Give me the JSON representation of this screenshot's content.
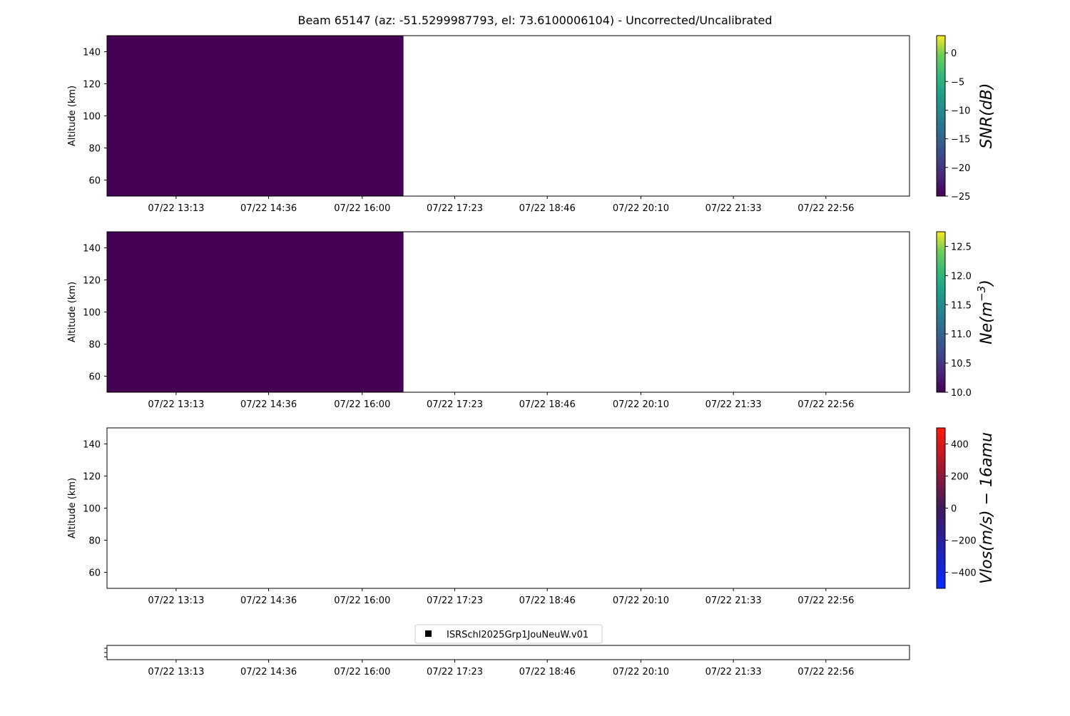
{
  "chart_data": {
    "title": "Beam 65147 (az: -51.5299987793, el: 73.6100006104) - Uncorrected/Uncalibrated",
    "type": "heatmap",
    "x_tick_labels": [
      "07/22 13:13",
      "07/22 14:36",
      "07/22 16:00",
      "07/22 17:23",
      "07/22 18:46",
      "07/22 20:10",
      "07/22 21:33",
      "07/22 22:56"
    ],
    "x_tick_minutes": [
      793,
      876,
      960,
      1043,
      1126,
      1210,
      1293,
      1376
    ],
    "xlim_minutes": [
      731,
      1451
    ],
    "panels": [
      {
        "ylabel": "Altitude (km)",
        "ylim": [
          50,
          150
        ],
        "yticks": [
          60,
          80,
          100,
          120,
          140
        ],
        "colorbar_label": "SNR(dB)",
        "colorbar_ticks": [
          0,
          -5,
          -10,
          -15,
          -20,
          -25
        ],
        "clim": [
          -25,
          3
        ],
        "colormap": "viridis",
        "data_extent_minutes": [
          731,
          997
        ],
        "data_value": -25,
        "fill_color": "#440154"
      },
      {
        "ylabel": "Altitude (km)",
        "ylim": [
          50,
          150
        ],
        "yticks": [
          60,
          80,
          100,
          120,
          140
        ],
        "colorbar_label": "Ne(m^-3)",
        "colorbar_ticks": [
          12.5,
          12.0,
          11.5,
          11.0,
          10.5,
          10.0
        ],
        "clim": [
          10.0,
          12.75
        ],
        "colormap": "viridis",
        "data_extent_minutes": [
          731,
          997
        ],
        "data_value": 10.0,
        "fill_color": "#440154"
      },
      {
        "ylabel": "Altitude (km)",
        "ylim": [
          50,
          150
        ],
        "yticks": [
          60,
          80,
          100,
          120,
          140
        ],
        "colorbar_label": "Vlos(m/s) − 16amu",
        "colorbar_ticks": [
          400,
          200,
          0,
          -200,
          -400
        ],
        "clim": [
          -500,
          500
        ],
        "colormap": "blue-dark-red",
        "data_extent_minutes": null
      }
    ],
    "legend": {
      "label": "ISRSchl2025Grp1JouNeuW.v01",
      "marker": "square",
      "color": "#000000",
      "placement": "top-center"
    },
    "grid": false
  }
}
